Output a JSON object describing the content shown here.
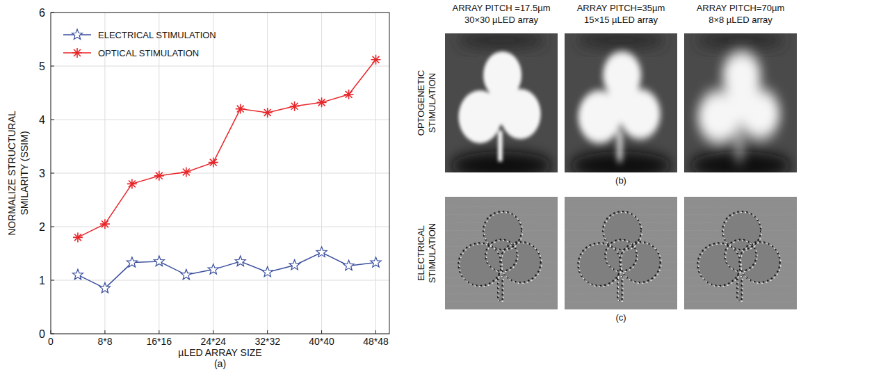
{
  "chart_data": {
    "type": "line",
    "title": "(a)",
    "x_label": "µLED ARRAY SIZE",
    "y_label": "NORMALIZE STRUCTURAL SMILARITY (SSIM)",
    "x": [
      4,
      8,
      12,
      16,
      20,
      24,
      28,
      32,
      36,
      40,
      44,
      48
    ],
    "series": [
      {
        "name": "ELECTRICAL STIMULATION",
        "color": "#3a4f9e",
        "marker": "star",
        "values": [
          1.1,
          0.85,
          1.33,
          1.35,
          1.1,
          1.2,
          1.35,
          1.15,
          1.28,
          1.52,
          1.27,
          1.33
        ]
      },
      {
        "name": "OPTICAL STIMULATION",
        "color": "#e8262a",
        "marker": "asterisk",
        "values": [
          1.8,
          2.05,
          2.8,
          2.95,
          3.02,
          3.2,
          4.2,
          4.13,
          4.25,
          4.32,
          4.47,
          5.12
        ]
      }
    ],
    "xlim": [
      0,
      50
    ],
    "xticks": [
      0,
      {
        "value": 8,
        "label": "8*8"
      },
      {
        "value": 16,
        "label": "16*16"
      },
      {
        "value": 24,
        "label": "24*24"
      },
      {
        "value": 32,
        "label": "32*32"
      },
      {
        "value": 40,
        "label": "40*40"
      },
      {
        "value": 48,
        "label": "48*48"
      }
    ],
    "ylim": [
      0,
      6
    ],
    "yticks": [
      0,
      1,
      2,
      3,
      4,
      5,
      6
    ],
    "grid": true,
    "legend": "upper-left"
  },
  "image_panels": {
    "columns": [
      {
        "pitch": "ARRAY PITCH =17.5µm",
        "array": "30×30 µLED array"
      },
      {
        "pitch": "ARRAY PITCH=35µm",
        "array": "15×15 µLED array"
      },
      {
        "pitch": "ARRAY PITCH=70µm",
        "array": "8×8 µLED array"
      }
    ],
    "rows": [
      {
        "label": "OPTOGENETIC STIMULATION",
        "caption": "(b)"
      },
      {
        "label": "ELECTRICAL STIMULATION",
        "caption": "(c)"
      }
    ]
  }
}
